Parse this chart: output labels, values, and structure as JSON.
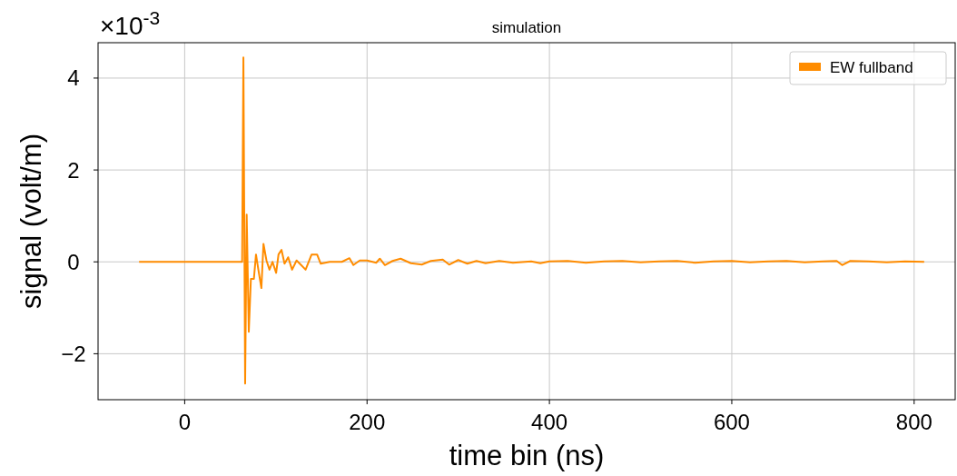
{
  "chart_data": {
    "type": "line",
    "title": "simulation",
    "xlabel": "time bin (ns)",
    "ylabel": "signal (volt/m)",
    "annotations": [
      "×10$^{-3}$"
    ],
    "xlim": [
      -95,
      845
    ],
    "xticks": [
      0,
      200,
      400,
      600,
      800
    ],
    "ylim": [
      -3,
      4.77
    ],
    "yticks": [
      {
        "value": -2,
        "label": "−2"
      },
      0,
      2,
      4
    ],
    "grid": true,
    "legend": "top right",
    "series": [
      {
        "name": "EW fullband",
        "color": "#ff8c00",
        "x": [
          -50,
          63,
          64.4,
          66.3,
          68,
          70.3,
          72.6,
          75.9,
          78.2,
          80.8,
          84.1,
          86.4,
          89.7,
          93,
          96.3,
          100.3,
          102.9,
          106.2,
          109.5,
          113.5,
          117.8,
          122.7,
          127.7,
          132.6,
          139.2,
          145.2,
          149.2,
          159.1,
          172.4,
          180.7,
          185,
          192,
          200,
          210,
          214,
          219.6,
          228,
          236.8,
          248,
          260,
          270,
          283,
          290,
          300,
          310,
          320,
          330,
          345,
          360,
          380,
          390,
          400,
          420,
          440,
          460,
          480,
          500,
          520,
          540,
          560,
          580,
          600,
          620,
          640,
          660,
          680,
          700,
          715,
          721,
          730,
          750,
          770,
          790,
          811
        ],
        "values": [
          0,
          0,
          4.45,
          -2.65,
          1.03,
          -1.52,
          -0.37,
          -0.37,
          0.16,
          -0.17,
          -0.57,
          0.39,
          0.03,
          -0.17,
          0,
          -0.24,
          0.16,
          0.26,
          -0.04,
          0.1,
          -0.17,
          0.03,
          -0.07,
          -0.17,
          0.16,
          0.16,
          -0.04,
          0,
          0,
          0.08,
          -0.07,
          0.03,
          0.03,
          -0.02,
          0.07,
          -0.07,
          0.02,
          0.07,
          -0.03,
          -0.06,
          0.02,
          0.05,
          -0.06,
          0.04,
          -0.04,
          0.02,
          -0.03,
          0.02,
          -0.02,
          0.01,
          -0.03,
          0.01,
          0.02,
          -0.02,
          0.01,
          0.02,
          -0.01,
          0.01,
          0.02,
          -0.02,
          0.01,
          0.02,
          -0.01,
          0.01,
          0.02,
          -0.01,
          0.01,
          0.02,
          -0.07,
          0.02,
          0.01,
          -0.01,
          0.01,
          0
        ]
      }
    ]
  }
}
